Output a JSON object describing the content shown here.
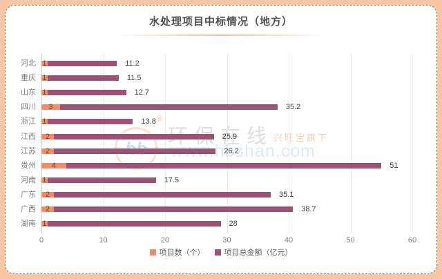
{
  "title": "水处理项目中标情况（地方）",
  "frame": {
    "background_color": "#F9C5A3",
    "card_color": "#FFFFFF",
    "border_style": "dashed"
  },
  "chart_data": {
    "type": "bar",
    "orientation": "horizontal",
    "stacked": true,
    "categories": [
      "河北",
      "重庆",
      "山东",
      "四川",
      "浙江",
      "江西",
      "江苏",
      "贵州",
      "河南",
      "广东",
      "广西",
      "湖南"
    ],
    "series": [
      {
        "name": "项目数（个）",
        "color": "#F58B66",
        "values": [
          1,
          1,
          1,
          3,
          1,
          2,
          2,
          4,
          1,
          2,
          2,
          1
        ]
      },
      {
        "name": "项目总金额（亿元）",
        "color": "#9A5374",
        "values": [
          11.2,
          11.5,
          12.7,
          35.2,
          13.8,
          25.9,
          26.2,
          51,
          17.5,
          35.1,
          38.7,
          28
        ]
      }
    ],
    "count_labels": [
      "1",
      "1",
      "1",
      "3",
      "1",
      "2",
      "2",
      "4",
      "1",
      "2",
      "2",
      "1"
    ],
    "value_labels": [
      "11.2",
      "11.5",
      "12.7",
      "35.2",
      "13.8",
      "25.9",
      "26.2",
      "51",
      "17.5",
      "35.1",
      "38.7",
      "28"
    ],
    "xlim": [
      0,
      60
    ],
    "x_ticks": [
      "0",
      "10",
      "20",
      "30",
      "40",
      "50",
      "60"
    ],
    "grid": true,
    "legend_position": "bottom",
    "axis_line_color": "#BCD2E8",
    "gridline_color": "#EAEAEA"
  },
  "watermark": {
    "logo_text": "hb",
    "reg": "®",
    "brand": "环保在线",
    "tagline": "兴旺宝旗下",
    "url": "www.hbzhan.com"
  }
}
